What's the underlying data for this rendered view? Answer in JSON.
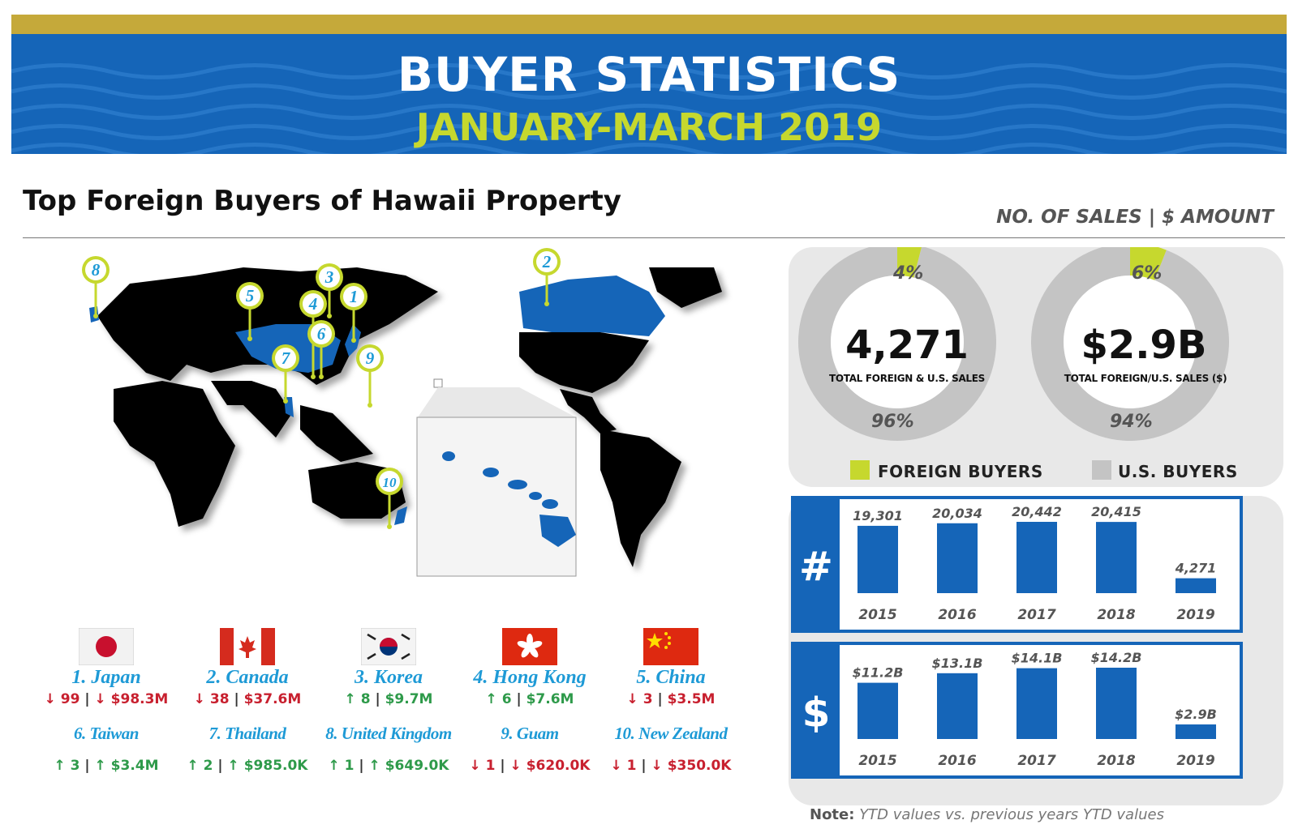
{
  "header": {
    "title": "BUYER STATISTICS",
    "subtitle": "JANUARY-MARCH 2019",
    "colors": {
      "gold": "#c5a93a",
      "blue": "#1565b8",
      "lime": "#c6d82e"
    }
  },
  "section": {
    "title": "Top Foreign Buyers of Hawaii Property",
    "metric_label": "NO. OF SALES | $ AMOUNT"
  },
  "map": {
    "pins": [
      "1",
      "2",
      "3",
      "4",
      "5",
      "6",
      "7",
      "8",
      "9",
      "10"
    ]
  },
  "countries": [
    {
      "name": "1. Japan",
      "flag": "japan-flag",
      "count": "99",
      "count_dir": "down",
      "amount": "$98.3M",
      "amount_dir": "down"
    },
    {
      "name": "2. Canada",
      "flag": "canada-flag",
      "count": "38",
      "count_dir": "down",
      "amount": "$37.6M",
      "amount_dir": "none"
    },
    {
      "name": "3. Korea",
      "flag": "korea-flag",
      "count": "8",
      "count_dir": "up",
      "amount": "$9.7M",
      "amount_dir": "none"
    },
    {
      "name": "4. Hong Kong",
      "flag": "hong-kong-flag",
      "count": "6",
      "count_dir": "up",
      "amount": "$7.6M",
      "amount_dir": "none"
    },
    {
      "name": "5. China",
      "flag": "china-flag",
      "count": "3",
      "count_dir": "down",
      "amount": "$3.5M",
      "amount_dir": "none"
    },
    {
      "name": "6. Taiwan",
      "count": "3",
      "count_dir": "up",
      "amount": "$3.4M",
      "amount_dir": "up"
    },
    {
      "name": "7. Thailand",
      "count": "2",
      "count_dir": "up",
      "amount": "$985.0K",
      "amount_dir": "up"
    },
    {
      "name": "8. United Kingdom",
      "count": "1",
      "count_dir": "up",
      "amount": "$649.0K",
      "amount_dir": "up"
    },
    {
      "name": "9. Guam",
      "count": "1",
      "count_dir": "down",
      "amount": "$620.0K",
      "amount_dir": "down"
    },
    {
      "name": "10. New Zealand",
      "count": "1",
      "count_dir": "down",
      "amount": "$350.0K",
      "amount_dir": "down"
    }
  ],
  "donuts": {
    "sales": {
      "value": "4,271",
      "caption": "TOTAL FOREIGN & U.S. SALES",
      "foreign_pct_label": "4%",
      "us_pct_label": "96%"
    },
    "amount": {
      "value": "$2.9B",
      "caption": "TOTAL FOREIGN/U.S. SALES ($)",
      "foreign_pct_label": "6%",
      "us_pct_label": "94%"
    },
    "legend": {
      "foreign": "FOREIGN BUYERS",
      "us": "U.S. BUYERS"
    },
    "colors": {
      "foreign": "#c6d82e",
      "us": "#c4c4c4"
    }
  },
  "chart_data": [
    {
      "type": "pie",
      "title": "TOTAL FOREIGN & U.S. SALES",
      "center_label": "4,271",
      "categories": [
        "FOREIGN BUYERS",
        "U.S. BUYERS"
      ],
      "values": [
        4,
        96
      ],
      "value_labels": [
        "4%",
        "96%"
      ]
    },
    {
      "type": "pie",
      "title": "TOTAL FOREIGN/U.S. SALES ($)",
      "center_label": "$2.9B",
      "categories": [
        "FOREIGN BUYERS",
        "U.S. BUYERS"
      ],
      "values": [
        6,
        94
      ],
      "value_labels": [
        "6%",
        "94%"
      ]
    },
    {
      "type": "bar",
      "axis_symbol": "#",
      "categories": [
        "2015",
        "2016",
        "2017",
        "2018",
        "2019"
      ],
      "values": [
        19301,
        20034,
        20442,
        20415,
        4271
      ],
      "value_labels": [
        "19,301",
        "20,034",
        "20,442",
        "20,415",
        "4,271"
      ],
      "color": "#1565b8"
    },
    {
      "type": "bar",
      "axis_symbol": "$",
      "categories": [
        "2015",
        "2016",
        "2017",
        "2018",
        "2019"
      ],
      "values": [
        11.2,
        13.1,
        14.1,
        14.2,
        2.9
      ],
      "value_labels": [
        "$11.2B",
        "$13.1B",
        "$14.1B",
        "$14.2B",
        "$2.9B"
      ],
      "color": "#1565b8"
    }
  ],
  "note": {
    "label": "Note:",
    "text": "YTD values vs. previous years YTD values"
  }
}
